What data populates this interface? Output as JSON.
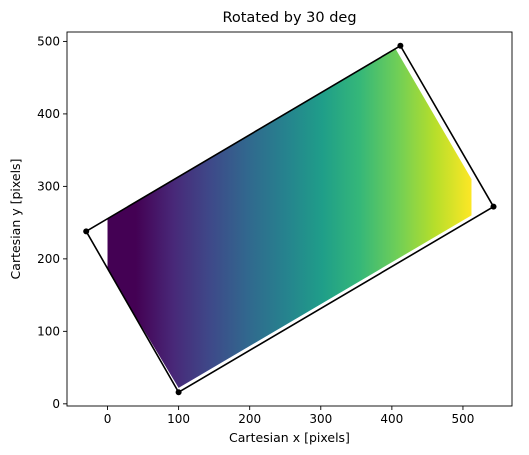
{
  "chart_data": {
    "type": "image",
    "title": "Rotated by 30 deg",
    "xlabel": "Cartesian x [pixels]",
    "ylabel": "Cartesian y [pixels]",
    "xlim": [
      -57,
      569
    ],
    "ylim": [
      -3,
      513
    ],
    "xticks": [
      0,
      100,
      200,
      300,
      400,
      500
    ],
    "yticks": [
      0,
      100,
      200,
      300,
      400,
      500
    ],
    "colormap": "viridis",
    "colormap_stops": [
      "#440154",
      "#482878",
      "#3e4989",
      "#31688e",
      "#26828e",
      "#1f9e89",
      "#35b779",
      "#6ece58",
      "#b5de2b",
      "#fde725"
    ],
    "gradient_x_range": [
      40,
      512
    ],
    "image_x_clip": [
      0,
      512
    ],
    "image_polygon": [
      [
        0,
        185
      ],
      [
        0,
        255
      ],
      [
        405,
        490
      ],
      [
        512,
        310
      ],
      [
        512,
        260
      ],
      [
        100,
        22
      ]
    ],
    "outline": {
      "color": "#000000",
      "points": [
        [
          -30,
          238
        ],
        [
          412,
          494
        ],
        [
          543,
          272
        ],
        [
          100,
          16
        ]
      ]
    },
    "grid": false,
    "legend": "none"
  }
}
